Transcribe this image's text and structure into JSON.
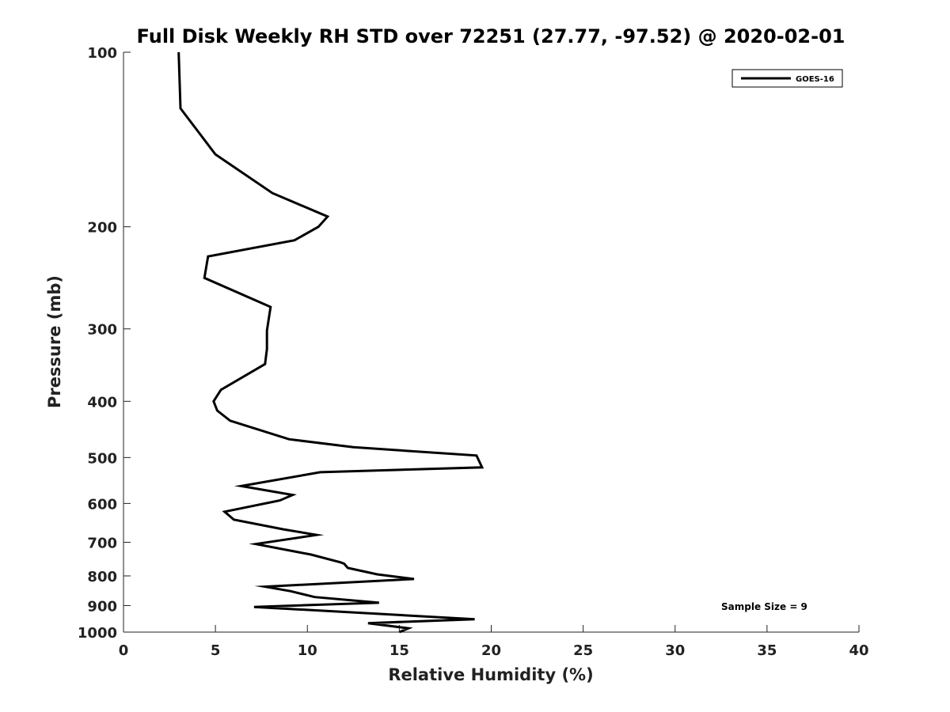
{
  "chart_data": {
    "type": "line",
    "title": "Full Disk Weekly RH STD over 72251 (27.77, -97.52) @ 2020-02-01",
    "xlabel": "Relative Humidity (%)",
    "ylabel": "Pressure (mb)",
    "xlim": [
      0,
      40
    ],
    "ylim": [
      100,
      1000
    ],
    "yscale": "log",
    "y_reversed": true,
    "xticks": [
      0,
      5,
      10,
      15,
      20,
      25,
      30,
      35,
      40
    ],
    "yticks": [
      100,
      200,
      300,
      400,
      500,
      600,
      700,
      800,
      900,
      1000
    ],
    "grid": false,
    "legend_position": "top-right",
    "annotation": "Sample Size = 9",
    "series": [
      {
        "name": "GOES-16",
        "color": "#000000",
        "points": [
          [
            3.0,
            100
          ],
          [
            3.1,
            125
          ],
          [
            5.0,
            150
          ],
          [
            8.1,
            175
          ],
          [
            11.1,
            192
          ],
          [
            10.6,
            200
          ],
          [
            9.3,
            211
          ],
          [
            4.6,
            225
          ],
          [
            4.4,
            245
          ],
          [
            8.0,
            275
          ],
          [
            7.8,
            302
          ],
          [
            7.8,
            325
          ],
          [
            7.7,
            345
          ],
          [
            5.3,
            382
          ],
          [
            4.9,
            400
          ],
          [
            5.1,
            415
          ],
          [
            5.8,
            432
          ],
          [
            9.0,
            465
          ],
          [
            12.5,
            480
          ],
          [
            19.2,
            496
          ],
          [
            19.5,
            520
          ],
          [
            10.7,
            530
          ],
          [
            6.4,
            560
          ],
          [
            9.2,
            580
          ],
          [
            8.5,
            593
          ],
          [
            5.5,
            620
          ],
          [
            6.0,
            640
          ],
          [
            8.7,
            665
          ],
          [
            10.5,
            680
          ],
          [
            7.2,
            705
          ],
          [
            10.2,
            735
          ],
          [
            11.8,
            758
          ],
          [
            12.0,
            762
          ],
          [
            12.2,
            775
          ],
          [
            13.8,
            795
          ],
          [
            15.8,
            810
          ],
          [
            7.7,
            835
          ],
          [
            9.1,
            850
          ],
          [
            10.4,
            870
          ],
          [
            13.9,
            890
          ],
          [
            7.1,
            905
          ],
          [
            19.1,
            950
          ],
          [
            13.3,
            965
          ],
          [
            15.5,
            985
          ],
          [
            15.0,
            1000
          ]
        ]
      }
    ]
  }
}
